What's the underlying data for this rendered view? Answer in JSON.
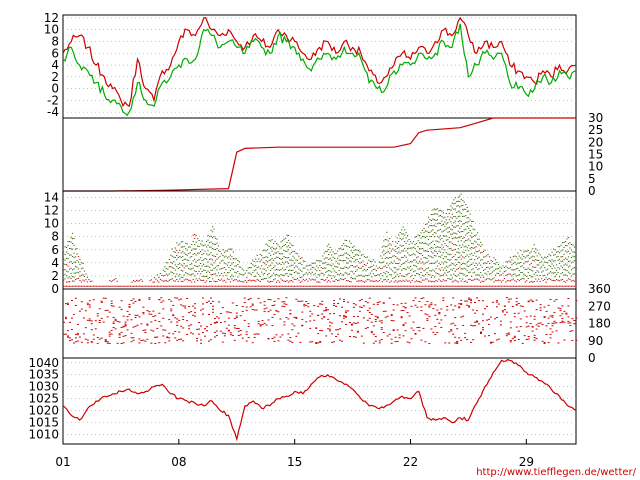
{
  "credit": "http://www.tiefflegen.de/wetter/",
  "colors": {
    "red": "#cc0000",
    "green": "#00aa00",
    "darkgreen": "#336600",
    "grid": "#999999"
  },
  "x_axis": {
    "ticks": [
      {
        "label": "01",
        "day": 1
      },
      {
        "label": "08",
        "day": 8
      },
      {
        "label": "15",
        "day": 15
      },
      {
        "label": "22",
        "day": 22
      },
      {
        "label": "29",
        "day": 29
      }
    ],
    "range": [
      1,
      32
    ]
  },
  "chart_data": [
    {
      "type": "line",
      "panel": "temperature",
      "ylim": [
        -5,
        12.5
      ],
      "yticks": [
        12,
        10,
        8,
        6,
        4,
        2,
        0,
        -2,
        -4
      ],
      "grid": true,
      "series": [
        {
          "color": "red",
          "x": [
            1,
            1.5,
            2,
            2.5,
            3,
            3.5,
            4,
            4.5,
            5,
            5.5,
            6,
            6.5,
            7,
            7.5,
            8,
            8.5,
            9,
            9.5,
            10,
            10.5,
            11,
            11.5,
            12,
            12.5,
            13,
            13.5,
            14,
            14.5,
            15,
            15.5,
            16,
            16.5,
            17,
            17.5,
            18,
            18.5,
            19,
            19.5,
            20,
            20.5,
            21,
            21.5,
            22,
            22.5,
            23,
            23.5,
            24,
            24.5,
            25,
            25.5,
            26,
            26.5,
            27,
            27.5,
            28,
            28.5,
            29,
            29.5,
            30,
            30.5,
            31,
            31.5,
            32
          ],
          "y": [
            6,
            8,
            9,
            7,
            4,
            2,
            0,
            -2,
            -3,
            5,
            0,
            -2,
            3,
            4,
            8,
            10,
            9,
            12,
            10,
            9,
            10,
            8,
            7,
            9,
            8,
            7,
            10,
            9,
            8,
            6,
            5,
            7,
            8,
            6,
            8,
            7,
            6,
            3,
            1,
            2,
            4,
            6,
            5,
            7,
            6,
            8,
            10,
            9,
            12,
            9,
            6,
            8,
            7,
            8,
            4,
            3,
            2,
            1,
            3,
            2,
            4,
            3,
            4
          ]
        },
        {
          "color": "green",
          "x": [
            1,
            1.5,
            2,
            2.5,
            3,
            3.5,
            4,
            4.5,
            5,
            5.5,
            6,
            6.5,
            7,
            7.5,
            8,
            8.5,
            9,
            9.5,
            10,
            10.5,
            11,
            11.5,
            12,
            12.5,
            13,
            13.5,
            14,
            14.5,
            15,
            15.5,
            16,
            16.5,
            17,
            17.5,
            18,
            18.5,
            19,
            19.5,
            20,
            20.5,
            21,
            21.5,
            22,
            22.5,
            23,
            23.5,
            24,
            24.5,
            25,
            25.5,
            26,
            26.5,
            27,
            27.5,
            28,
            28.5,
            29,
            29.5,
            30,
            30.5,
            31,
            31.5,
            32
          ],
          "y": [
            5,
            7,
            4,
            3,
            1,
            -1,
            -2,
            -3,
            -4,
            1,
            -2,
            -3,
            1,
            2,
            4,
            5,
            5,
            10,
            9,
            7,
            8,
            7,
            6,
            8,
            7,
            6,
            9,
            8,
            7,
            5,
            3,
            5,
            6,
            5,
            7,
            6,
            5,
            1,
            0,
            0,
            3,
            4,
            4,
            6,
            5,
            6,
            8,
            7,
            11,
            2,
            4,
            6,
            5,
            6,
            1,
            0,
            -1,
            0,
            2,
            1,
            3,
            2,
            3
          ]
        }
      ]
    },
    {
      "type": "line",
      "panel": "precipitation",
      "ylim": [
        0,
        30
      ],
      "yticks": [
        30,
        25,
        20,
        15,
        10,
        5,
        0
      ],
      "series": [
        {
          "color": "red",
          "x": [
            1,
            4,
            7,
            11,
            11.5,
            12,
            14,
            17,
            20,
            21,
            22,
            22.5,
            23,
            25,
            26,
            27,
            28,
            31,
            32
          ],
          "y": [
            0,
            0,
            0.3,
            1,
            16,
            17.5,
            18,
            18,
            18,
            18,
            19.5,
            24,
            25,
            26,
            28,
            30,
            30,
            30,
            30
          ]
        }
      ]
    },
    {
      "type": "scatter",
      "panel": "wind speed",
      "ylim": [
        0,
        15
      ],
      "yticks": [
        14,
        12,
        10,
        8,
        6,
        4,
        2,
        0
      ],
      "grid": true,
      "envelope": {
        "x": [
          1,
          1.5,
          2,
          2.5,
          3,
          3.5,
          4,
          4.5,
          5,
          5.5,
          6,
          6.5,
          7,
          7.5,
          8,
          8.5,
          9,
          9.5,
          10,
          10.5,
          11,
          11.5,
          12,
          12.5,
          13,
          13.5,
          14,
          14.5,
          15,
          15.5,
          16,
          16.5,
          17,
          17.5,
          18,
          18.5,
          19,
          19.5,
          20,
          20.5,
          21,
          21.5,
          22,
          22.5,
          23,
          23.5,
          24,
          24.5,
          25,
          25.5,
          26,
          26.5,
          27,
          27.5,
          28,
          28.5,
          29,
          29.5,
          30,
          30.5,
          31,
          31.5,
          32
        ],
        "y": [
          6,
          9,
          5,
          2,
          1,
          1,
          2,
          1,
          1,
          2,
          1,
          2,
          3,
          6,
          8,
          7,
          9,
          7,
          10,
          6,
          7,
          5,
          3,
          5,
          6,
          8,
          7,
          9,
          6,
          5,
          4,
          5,
          7,
          6,
          8,
          7,
          6,
          5,
          4,
          9,
          7,
          10,
          8,
          9,
          11,
          13,
          12,
          14,
          15,
          12,
          9,
          6,
          5,
          4,
          5,
          6,
          6,
          7,
          5,
          6,
          7,
          8,
          6
        ]
      },
      "series": [
        {
          "color": "darkgreen",
          "name": ""
        },
        {
          "color": "red",
          "name": ""
        }
      ]
    },
    {
      "type": "scatter",
      "panel": "wind direction",
      "ylim": [
        0,
        360
      ],
      "yticks": [
        360,
        270,
        180,
        90,
        0
      ],
      "series": [
        {
          "color": "red"
        }
      ]
    },
    {
      "type": "line",
      "panel": "pressure",
      "ylim": [
        1006,
        1042
      ],
      "yticks": [
        1040,
        1035,
        1030,
        1025,
        1020,
        1015,
        1010
      ],
      "grid": true,
      "series": [
        {
          "color": "red",
          "x": [
            1,
            1.5,
            2,
            2.5,
            3,
            3.5,
            4,
            4.5,
            5,
            5.5,
            6,
            6.5,
            7,
            7.5,
            8,
            8.5,
            9,
            9.5,
            10,
            10.5,
            11,
            11.5,
            12,
            12.5,
            13,
            13.5,
            14,
            14.5,
            15,
            15.5,
            16,
            16.5,
            17,
            17.5,
            18,
            18.5,
            19,
            19.5,
            20,
            20.5,
            21,
            21.5,
            22,
            22.5,
            23,
            23.5,
            24,
            24.5,
            25,
            25.5,
            26,
            26.5,
            27,
            27.5,
            28,
            28.5,
            29,
            29.5,
            30,
            30.5,
            31,
            31.5,
            32
          ],
          "y": [
            1022,
            1018,
            1016,
            1021,
            1024,
            1026,
            1027,
            1028,
            1029,
            1027,
            1028,
            1030,
            1031,
            1027,
            1025,
            1024,
            1023,
            1022,
            1024,
            1020,
            1018,
            1008,
            1022,
            1024,
            1021,
            1022,
            1025,
            1026,
            1028,
            1027,
            1031,
            1034,
            1035,
            1033,
            1031,
            1029,
            1025,
            1022,
            1021,
            1022,
            1024,
            1026,
            1025,
            1028,
            1017,
            1016,
            1017,
            1015,
            1017,
            1016,
            1023,
            1030,
            1036,
            1041,
            1041,
            1039,
            1036,
            1034,
            1032,
            1029,
            1026,
            1022,
            1020
          ]
        }
      ]
    }
  ]
}
